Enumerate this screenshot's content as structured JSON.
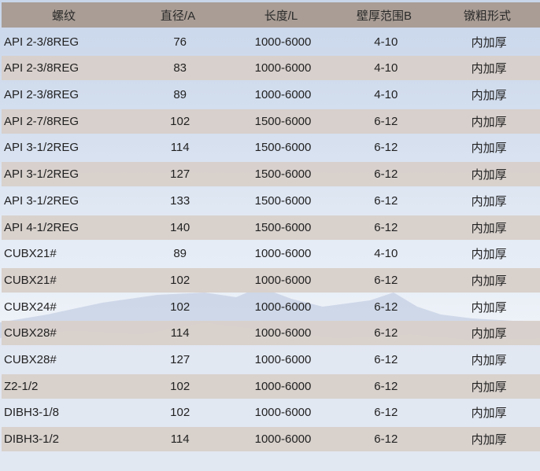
{
  "colors": {
    "header_bg": "#a99d95",
    "alt_row_bg": "#d8cfca",
    "background": "#d6e0ef"
  },
  "headers": [
    "螺纹",
    "直径/A",
    "长度/L",
    "壁厚范围B",
    "镦粗形式"
  ],
  "rows": [
    [
      "API 2-3/8REG",
      "76",
      "1000-6000",
      "4-10",
      "内加厚"
    ],
    [
      "API 2-3/8REG",
      "83",
      "1000-6000",
      "4-10",
      "内加厚"
    ],
    [
      "API 2-3/8REG",
      "89",
      "1000-6000",
      "4-10",
      "内加厚"
    ],
    [
      "API 2-7/8REG",
      "102",
      "1500-6000",
      "6-12",
      "内加厚"
    ],
    [
      "API 3-1/2REG",
      "114",
      "1500-6000",
      "6-12",
      "内加厚"
    ],
    [
      "API 3-1/2REG",
      "127",
      "1500-6000",
      "6-12",
      "内加厚"
    ],
    [
      "API 3-1/2REG",
      "133",
      "1500-6000",
      "6-12",
      "内加厚"
    ],
    [
      "API 4-1/2REG",
      "140",
      "1500-6000",
      "6-12",
      "内加厚"
    ],
    [
      "CUBX21#",
      "89",
      "1000-6000",
      "4-10",
      "内加厚"
    ],
    [
      "CUBX21#",
      "102",
      "1000-6000",
      "6-12",
      "内加厚"
    ],
    [
      "CUBX24#",
      "102",
      "1000-6000",
      "6-12",
      "内加厚"
    ],
    [
      "CUBX28#",
      "114",
      "1000-6000",
      "6-12",
      "内加厚"
    ],
    [
      "CUBX28#",
      "127",
      "1000-6000",
      "6-12",
      "内加厚"
    ],
    [
      "Z2-1/2",
      "102",
      "1000-6000",
      "6-12",
      "内加厚"
    ],
    [
      "DIBH3-1/8",
      "102",
      "1000-6000",
      "6-12",
      "内加厚"
    ],
    [
      "DIBH3-1/2",
      "114",
      "1000-6000",
      "6-12",
      "内加厚"
    ]
  ]
}
